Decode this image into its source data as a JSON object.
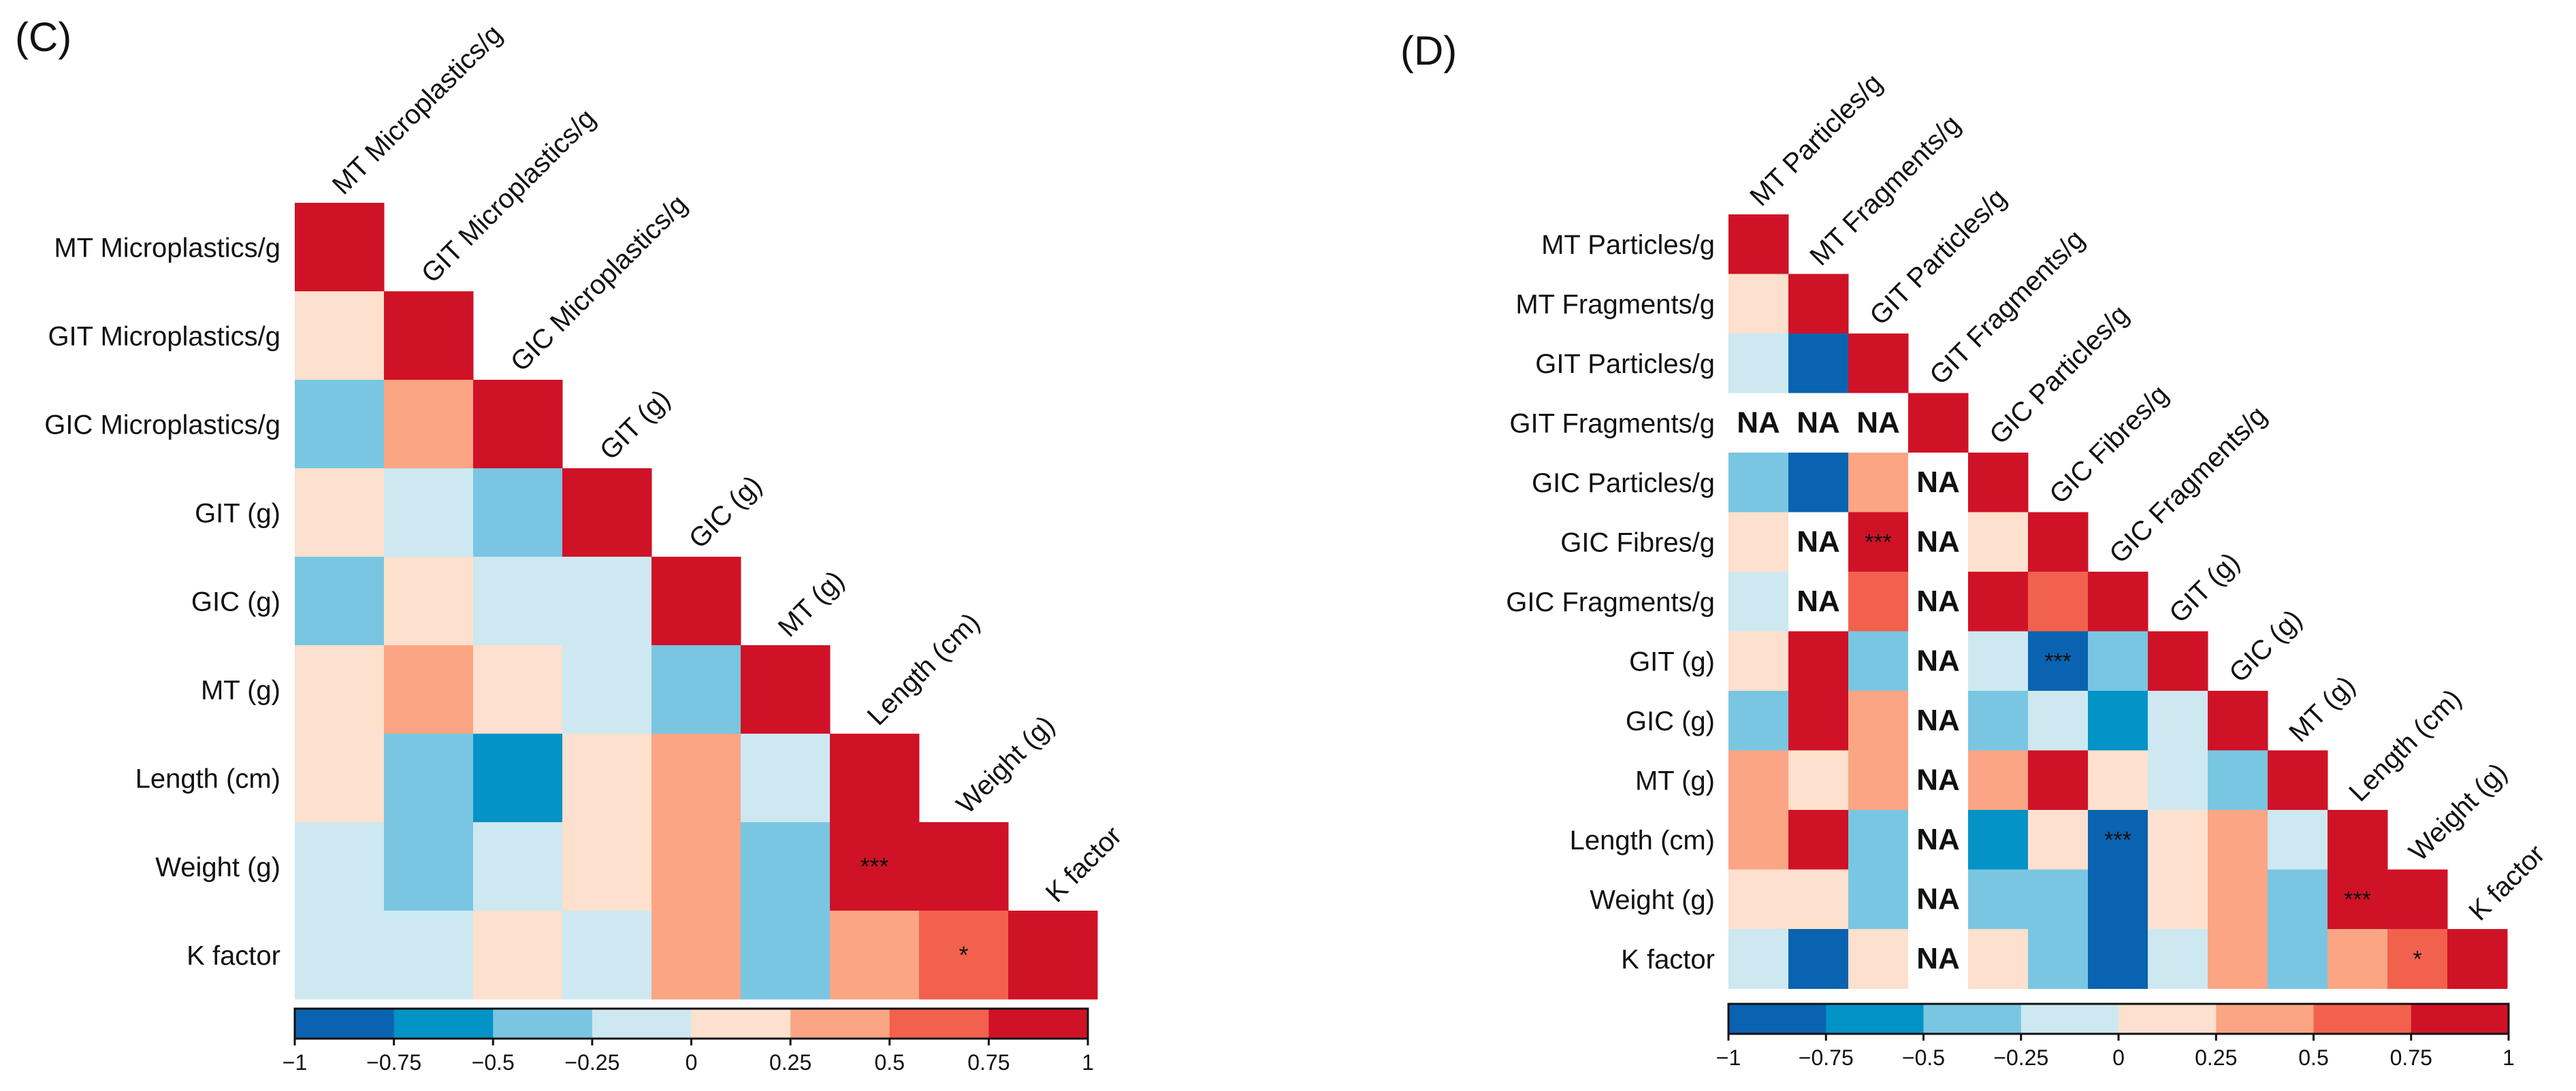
{
  "colors": {
    "n100": "#0A63B0",
    "n075": "#0393C7",
    "n050": "#79C6E2",
    "n025": "#CDE8F1",
    "p000": "#FDE0CD",
    "p025": "#FBA585",
    "p050": "#F2614D",
    "p075": "#D01227",
    "na_fill": "#FFFFFF",
    "text": "#111111"
  },
  "chart_data": [
    {
      "type": "heatmap",
      "panel_label": "(C)",
      "variables": [
        "MT Microplastics/g",
        "GIT Microplastics/g",
        "GIC Microplastics/g",
        "GIT (g)",
        "GIC (g)",
        "MT (g)",
        "Length (cm)",
        "Weight (g)",
        "K factor"
      ],
      "row_labels": [
        "MT Microplastics/g",
        "GIT Microplastics/g",
        "GIC Microplastics/g",
        "GIT (g)",
        "GIC (g)",
        "MT (g)",
        "Length (cm)",
        "Weight (g)",
        "K factor"
      ],
      "col_labels": [
        "MT Microplastics/g",
        "GIT Microplastics/g",
        "GIC Microplastics/g",
        "GIT (g)",
        "GIC (g)",
        "MT (g)",
        "Length (cm)",
        "Weight (g)",
        "K factor"
      ],
      "triangle": "lower",
      "values": [
        [
          1
        ],
        [
          0.1,
          1
        ],
        [
          -0.4,
          0.4,
          1
        ],
        [
          0.1,
          -0.1,
          -0.4,
          1
        ],
        [
          -0.4,
          0.1,
          -0.1,
          -0.1,
          1
        ],
        [
          0.1,
          0.4,
          0.1,
          -0.1,
          -0.4,
          1
        ],
        [
          0.1,
          -0.4,
          -0.6,
          0.1,
          0.4,
          -0.1,
          1
        ],
        [
          -0.1,
          -0.4,
          -0.1,
          0.1,
          0.4,
          -0.4,
          0.9,
          1
        ],
        [
          -0.1,
          -0.1,
          0.1,
          -0.1,
          0.4,
          -0.4,
          0.4,
          0.6,
          1
        ]
      ],
      "significance": [
        {
          "row": 7,
          "col": 6,
          "label": "***"
        },
        {
          "row": 8,
          "col": 7,
          "label": "*"
        }
      ],
      "colorbar": {
        "range": [
          -1,
          1
        ],
        "tick_values": [
          -1,
          -0.75,
          -0.5,
          -0.25,
          0,
          0.25,
          0.5,
          0.75,
          1
        ],
        "tick_labels": [
          "−1",
          "−0.75",
          "−0.5",
          "−0.25",
          "0",
          "0.25",
          "0.5",
          "0.75",
          "1"
        ]
      }
    },
    {
      "type": "heatmap",
      "panel_label": "(D)",
      "variables": [
        "MT Particles/g",
        "MT Fragments/g",
        "GIT Particles/g",
        "GIT Fragments/g",
        "GIC Particles/g",
        "GIC Fibres/g",
        "GIC Fragments/g",
        "GIT (g)",
        "GIC (g)",
        "MT (g)",
        "Length (cm)",
        "Weight (g)",
        "K factor"
      ],
      "row_labels": [
        "MT Particles/g",
        "MT Fragments/g",
        "GIT Particles/g",
        "GIT Fragments/g",
        "GIC Particles/g",
        "GIC Fibres/g",
        "GIC Fragments/g",
        "GIT (g)",
        "GIC (g)",
        "MT (g)",
        "Length (cm)",
        "Weight (g)",
        "K factor"
      ],
      "col_labels": [
        "MT Particles/g",
        "MT Fragments/g",
        "GIT Particles/g",
        "GIT Fragments/g",
        "GIC Particles/g",
        "GIC Fibres/g",
        "GIC Fragments/g",
        "GIT (g)",
        "GIC (g)",
        "MT (g)",
        "Length (cm)",
        "Weight (g)",
        "K factor"
      ],
      "triangle": "lower",
      "na_label": "NA",
      "values": [
        [
          1
        ],
        [
          0.1,
          1
        ],
        [
          -0.1,
          -0.9,
          1
        ],
        [
          "NA",
          "NA",
          "NA",
          1
        ],
        [
          -0.4,
          -0.9,
          0.4,
          "NA",
          1
        ],
        [
          0.1,
          "NA",
          0.9,
          "NA",
          0.1,
          1
        ],
        [
          -0.1,
          "NA",
          0.6,
          "NA",
          0.9,
          0.6,
          1
        ],
        [
          0.1,
          0.9,
          -0.4,
          "NA",
          -0.1,
          -0.9,
          -0.4,
          1
        ],
        [
          -0.4,
          0.9,
          0.4,
          "NA",
          -0.4,
          -0.1,
          -0.6,
          -0.1,
          1
        ],
        [
          0.4,
          0.1,
          0.4,
          "NA",
          0.4,
          0.9,
          0.1,
          -0.1,
          -0.4,
          1
        ],
        [
          0.4,
          0.9,
          -0.4,
          "NA",
          -0.6,
          0.1,
          -0.9,
          0.1,
          0.4,
          -0.1,
          1
        ],
        [
          0.1,
          0.1,
          -0.4,
          "NA",
          -0.4,
          -0.4,
          -0.9,
          0.1,
          0.4,
          -0.4,
          0.9,
          1
        ],
        [
          -0.1,
          -0.9,
          0.1,
          "NA",
          0.1,
          -0.4,
          -0.9,
          -0.1,
          0.4,
          -0.4,
          0.4,
          0.6,
          1
        ]
      ],
      "significance": [
        {
          "row": 5,
          "col": 2,
          "label": "***"
        },
        {
          "row": 7,
          "col": 5,
          "label": "***"
        },
        {
          "row": 10,
          "col": 6,
          "label": "***"
        },
        {
          "row": 11,
          "col": 10,
          "label": "***"
        },
        {
          "row": 12,
          "col": 11,
          "label": "*"
        }
      ],
      "colorbar": {
        "range": [
          -1,
          1
        ],
        "tick_values": [
          -1,
          -0.75,
          -0.5,
          -0.25,
          0,
          0.25,
          0.5,
          0.75,
          1
        ],
        "tick_labels": [
          "−1",
          "−0.75",
          "−0.5",
          "−0.25",
          "0",
          "0.25",
          "0.5",
          "0.75",
          "1"
        ]
      }
    }
  ]
}
